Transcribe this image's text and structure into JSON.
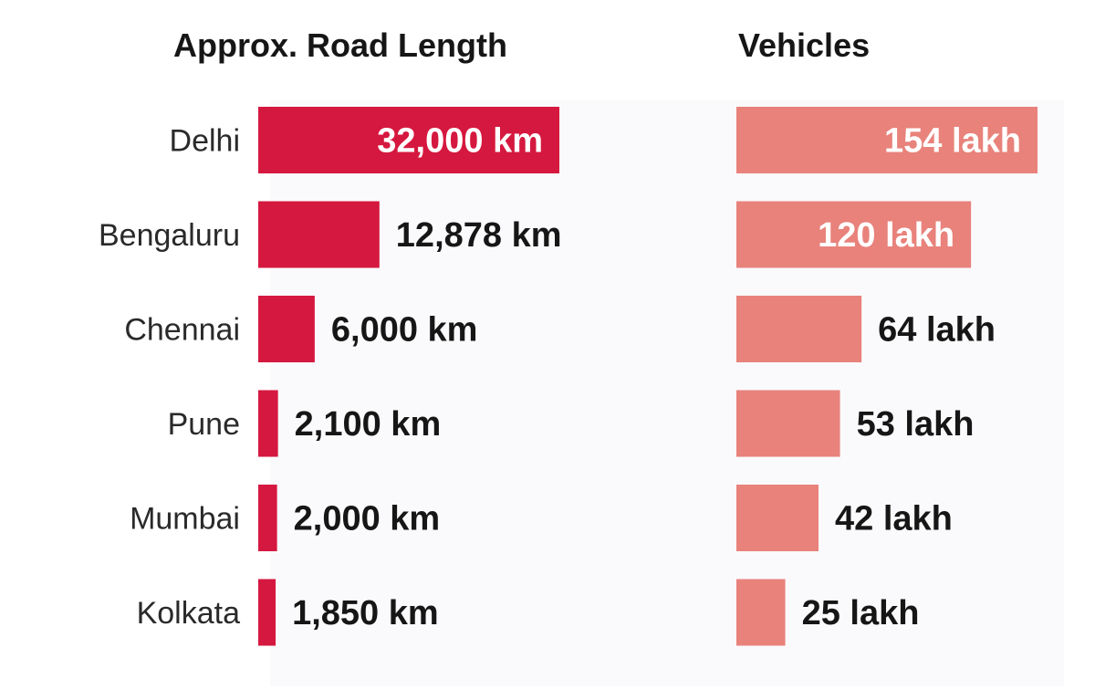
{
  "chart_data": [
    {
      "type": "bar",
      "orientation": "horizontal",
      "title": "Approx. Road Length",
      "categories": [
        "Delhi",
        "Bengaluru",
        "Chennai",
        "Pune",
        "Mumbai",
        "Kolkata"
      ],
      "values": [
        32000,
        12878,
        6000,
        2100,
        2000,
        1850
      ],
      "value_labels": [
        "32,000 km",
        "12,878 km",
        "6,000 km",
        "2,100 km",
        "2,000 km",
        "1,850 km"
      ],
      "unit": "km",
      "color": "#d5183f",
      "grid": false,
      "legend": "none"
    },
    {
      "type": "bar",
      "orientation": "horizontal",
      "title": "Vehicles",
      "categories": [
        "Delhi",
        "Bengaluru",
        "Chennai",
        "Pune",
        "Mumbai",
        "Kolkata"
      ],
      "values": [
        154,
        120,
        64,
        53,
        42,
        25
      ],
      "value_labels": [
        "154 lakh",
        "120 lakh",
        "64 lakh",
        "53 lakh",
        "42 lakh",
        "25 lakh"
      ],
      "unit": "lakh",
      "color": "#e8827b",
      "grid": false,
      "legend": "none"
    }
  ],
  "colors": {
    "background": "#ffffff",
    "panel": "#fafafc",
    "text": "#161616",
    "category_text": "#2a2a2a",
    "inside_label": "#ffffff"
  }
}
